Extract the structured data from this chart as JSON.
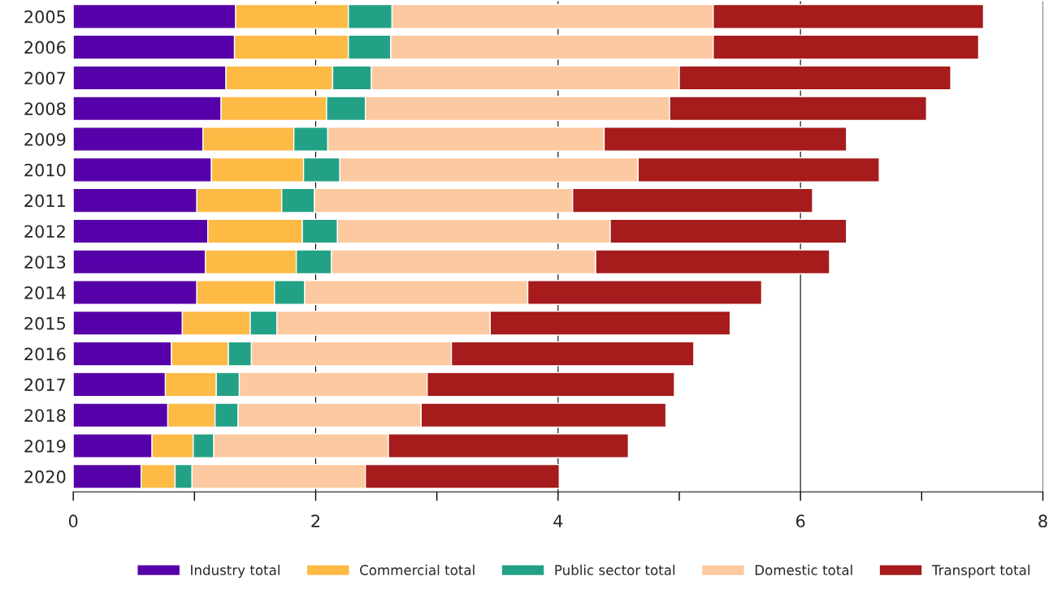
{
  "chart_data": {
    "type": "bar",
    "orientation": "horizontal",
    "stacked": true,
    "categories": [
      "2005",
      "2006",
      "2007",
      "2008",
      "2009",
      "2010",
      "2011",
      "2012",
      "2013",
      "2014",
      "2015",
      "2016",
      "2017",
      "2018",
      "2019",
      "2020"
    ],
    "series": [
      {
        "name": "Industry total",
        "color": "#5500a8",
        "values": [
          1.34,
          1.33,
          1.26,
          1.22,
          1.07,
          1.14,
          1.02,
          1.11,
          1.09,
          1.02,
          0.9,
          0.81,
          0.76,
          0.78,
          0.65,
          0.56
        ]
      },
      {
        "name": "Commercial total",
        "color": "#fdba45",
        "values": [
          0.93,
          0.94,
          0.88,
          0.87,
          0.75,
          0.76,
          0.7,
          0.78,
          0.75,
          0.64,
          0.56,
          0.47,
          0.42,
          0.39,
          0.34,
          0.28
        ]
      },
      {
        "name": "Public sector total",
        "color": "#23a186",
        "values": [
          0.36,
          0.35,
          0.32,
          0.32,
          0.28,
          0.3,
          0.27,
          0.29,
          0.29,
          0.25,
          0.22,
          0.19,
          0.19,
          0.19,
          0.17,
          0.14
        ]
      },
      {
        "name": "Domestic total",
        "color": "#fcc9a0",
        "values": [
          2.65,
          2.66,
          2.54,
          2.51,
          2.28,
          2.46,
          2.13,
          2.25,
          2.18,
          1.84,
          1.76,
          1.65,
          1.55,
          1.51,
          1.44,
          1.43
        ]
      },
      {
        "name": "Transport total",
        "color": "#a61b1b",
        "values": [
          2.23,
          2.19,
          2.24,
          2.12,
          2.0,
          1.99,
          1.98,
          1.95,
          1.93,
          1.93,
          1.98,
          2.0,
          2.04,
          2.02,
          1.98,
          1.6
        ]
      }
    ],
    "xlim": [
      0,
      8
    ],
    "xticks": [
      0,
      {
        "value": 1,
        "label": null
      },
      2,
      {
        "value": 3,
        "label": null
      },
      4,
      {
        "value": 5,
        "label": null
      },
      6,
      {
        "value": 7,
        "label": null
      },
      8
    ],
    "grid": "x",
    "legend": "bottom"
  }
}
